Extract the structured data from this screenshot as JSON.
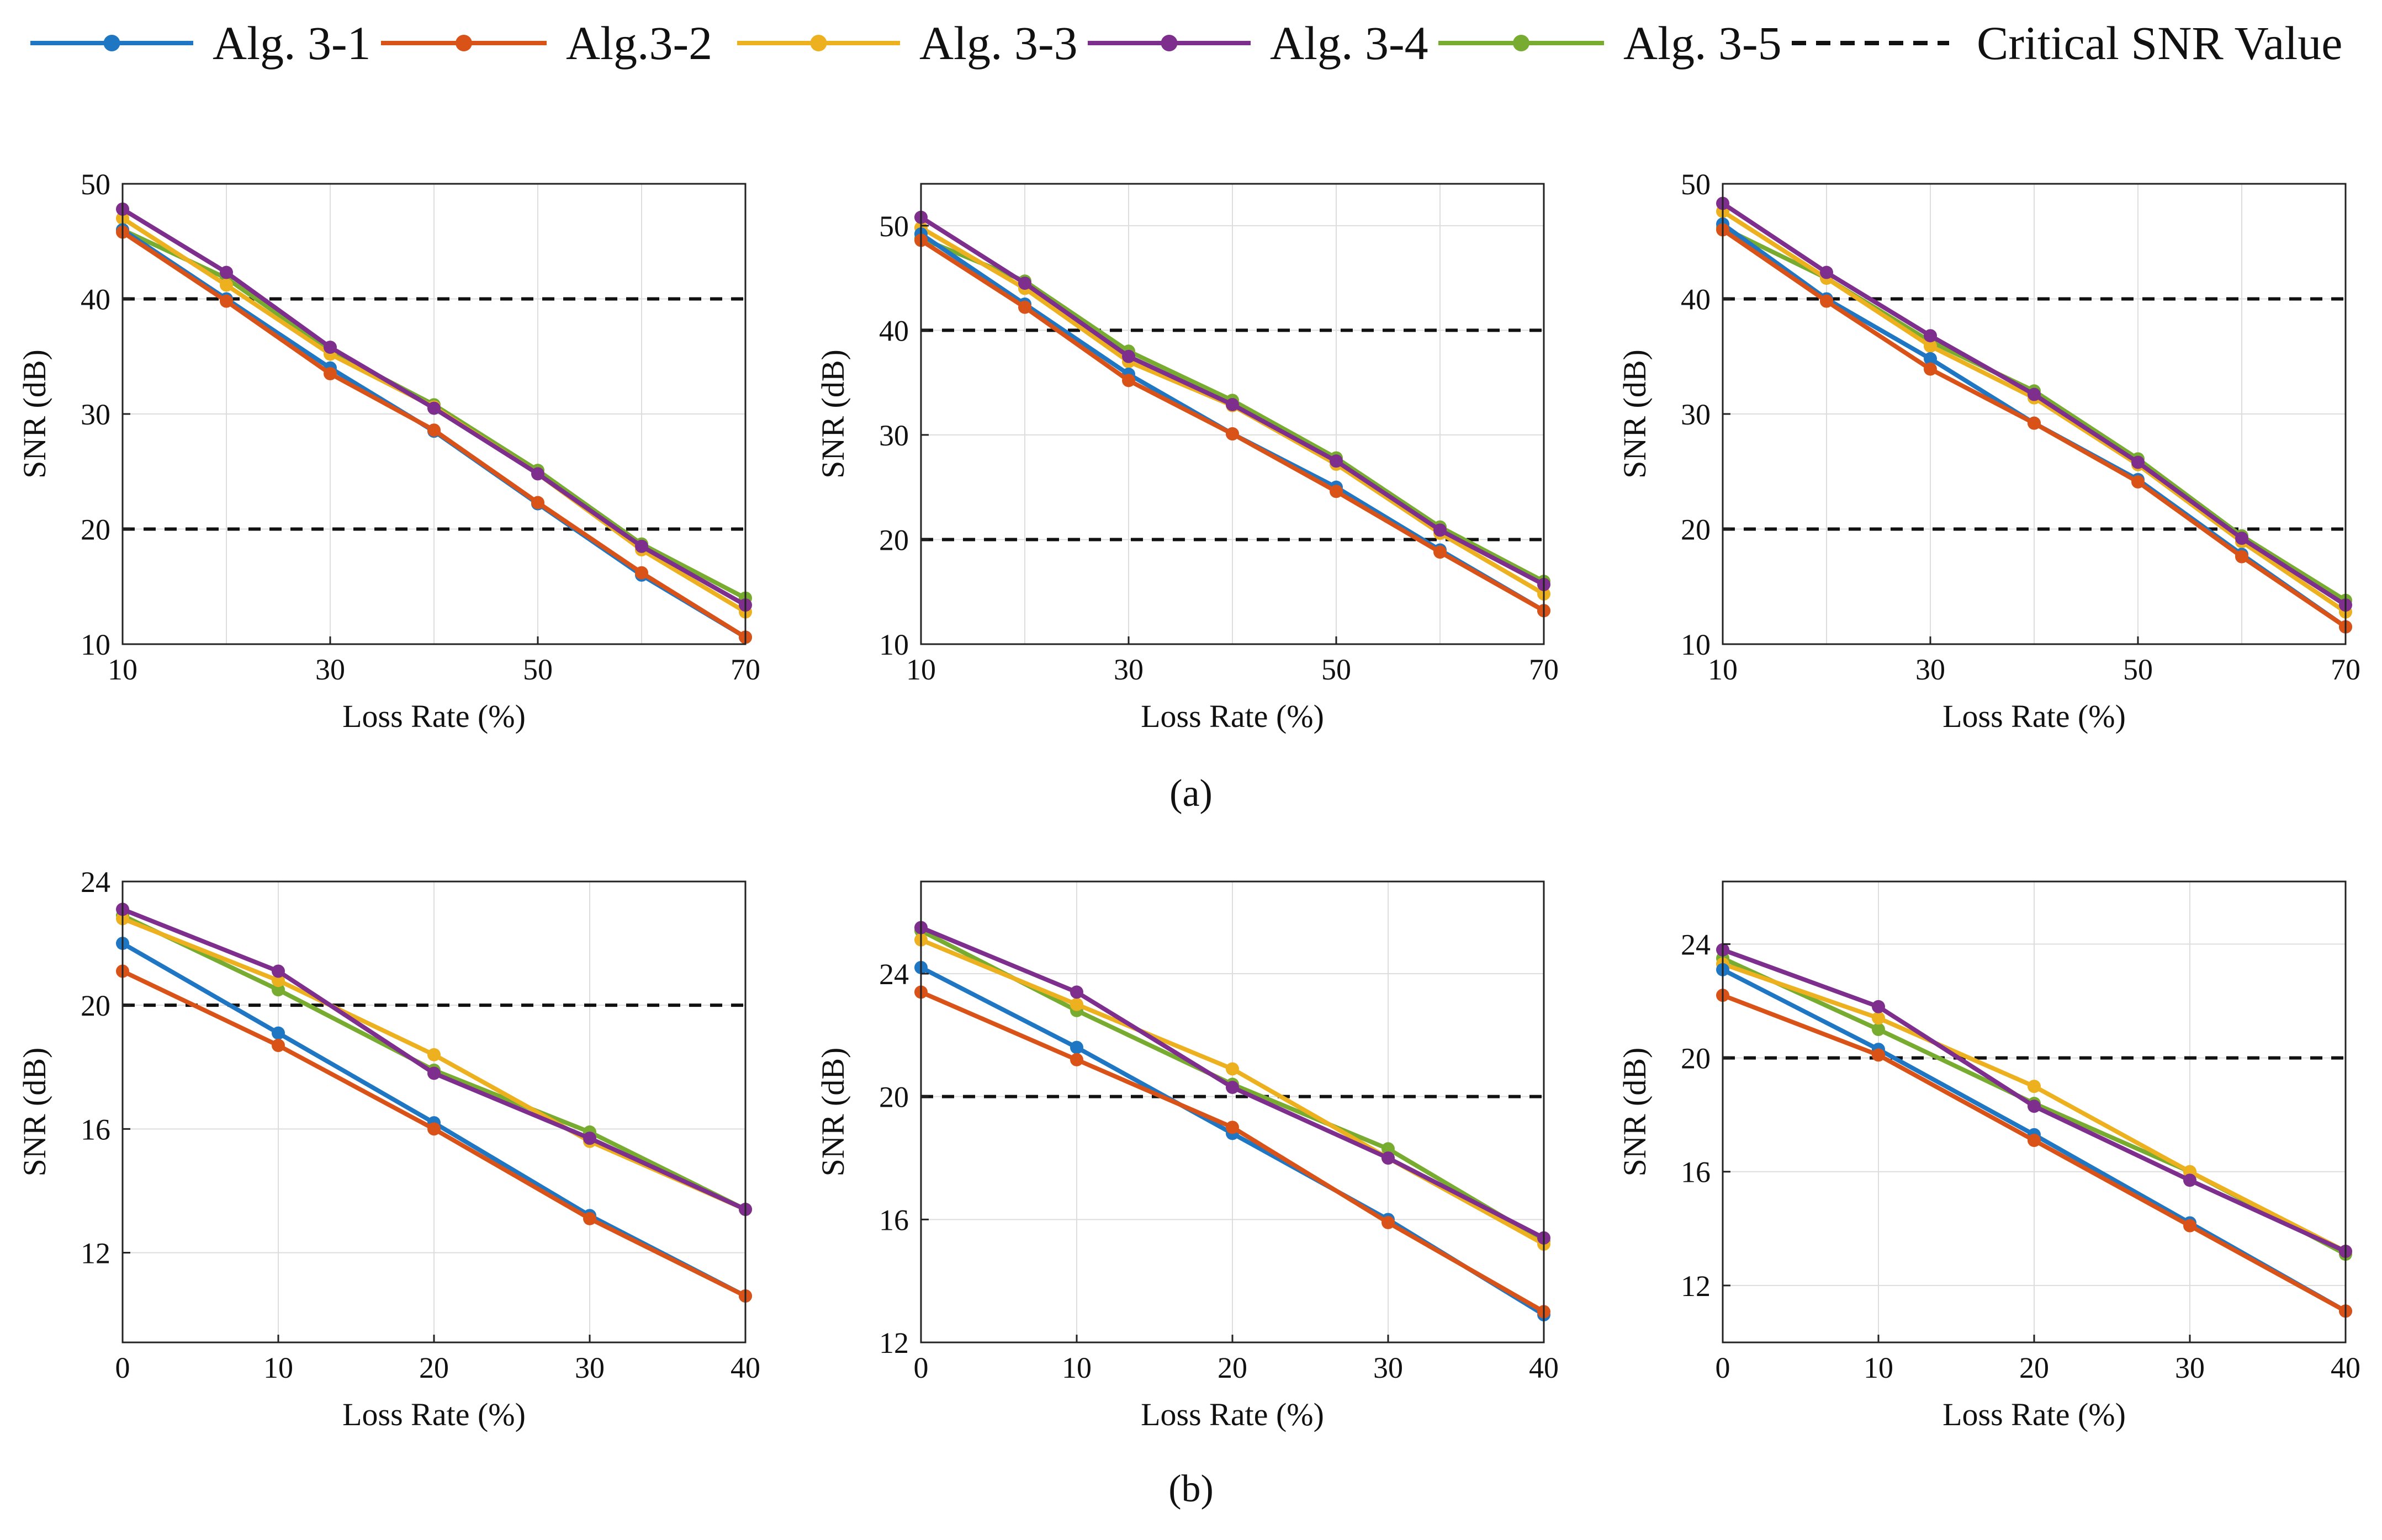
{
  "chart_data": {
    "type": "line",
    "legend": {
      "position": "top",
      "entries": [
        "Alg. 3-1",
        "Alg.3-2",
        "Alg. 3-3",
        "Alg. 3-4",
        "Alg. 3-5",
        "Critical SNR Value"
      ]
    },
    "series_colors": {
      "Alg. 3-1": "#1F77C4",
      "Alg.3-2": "#D95319",
      "Alg. 3-3": "#EDB120",
      "Alg. 3-4": "#7E2F8E",
      "Alg. 3-5": "#77AC30",
      "Critical SNR Value": "#111111"
    },
    "group_labels": [
      "(a)",
      "(b)"
    ],
    "subplots": [
      {
        "group": "(a)",
        "row": 0,
        "col": 0,
        "xlabel": "Loss Rate (%)",
        "ylabel": "SNR (dB)",
        "xlim": [
          10,
          70
        ],
        "ylim": [
          10,
          50
        ],
        "xticks": [
          10,
          30,
          50,
          70
        ],
        "yticks": [
          10,
          20,
          30,
          40,
          50
        ],
        "xgrid": [
          10,
          20,
          30,
          40,
          50,
          60,
          70
        ],
        "reference_lines": [
          40,
          20
        ],
        "x": [
          10,
          20,
          30,
          40,
          50,
          60,
          70
        ],
        "series": [
          {
            "name": "Alg. 3-1",
            "values": [
              46.0,
              40.0,
              34.0,
              28.5,
              22.2,
              16.0,
              10.6
            ]
          },
          {
            "name": "Alg.3-2",
            "values": [
              45.8,
              39.8,
              33.5,
              28.6,
              22.3,
              16.2,
              10.6
            ]
          },
          {
            "name": "Alg. 3-3",
            "values": [
              47.0,
              41.2,
              35.2,
              30.6,
              24.8,
              18.2,
              12.8
            ]
          },
          {
            "name": "Alg. 3-4",
            "values": [
              47.8,
              42.3,
              35.8,
              30.5,
              24.8,
              18.5,
              13.4
            ]
          },
          {
            "name": "Alg. 3-5",
            "values": [
              46.0,
              41.8,
              35.5,
              30.8,
              25.1,
              18.7,
              14.0
            ]
          }
        ]
      },
      {
        "group": "(a)",
        "row": 0,
        "col": 1,
        "xlabel": "Loss Rate (%)",
        "ylabel": "SNR (dB)",
        "xlim": [
          10,
          70
        ],
        "ylim": [
          10,
          54
        ],
        "xticks": [
          10,
          30,
          50,
          70
        ],
        "yticks": [
          10,
          20,
          30,
          40,
          50
        ],
        "xgrid": [
          10,
          20,
          30,
          40,
          50,
          60,
          70
        ],
        "reference_lines": [
          40,
          20
        ],
        "x": [
          10,
          20,
          30,
          40,
          50,
          60,
          70
        ],
        "series": [
          {
            "name": "Alg. 3-1",
            "values": [
              49.2,
              42.5,
              35.8,
              30.1,
              25.0,
              19.0,
              13.2
            ]
          },
          {
            "name": "Alg.3-2",
            "values": [
              48.6,
              42.2,
              35.2,
              30.1,
              24.6,
              18.8,
              13.2
            ]
          },
          {
            "name": "Alg. 3-3",
            "values": [
              49.8,
              44.0,
              37.0,
              32.8,
              27.2,
              20.6,
              14.8
            ]
          },
          {
            "name": "Alg. 3-4",
            "values": [
              50.8,
              44.5,
              37.5,
              32.9,
              27.5,
              20.9,
              15.7
            ]
          },
          {
            "name": "Alg. 3-5",
            "values": [
              48.8,
              44.7,
              38.0,
              33.3,
              27.8,
              21.2,
              16.0
            ]
          }
        ]
      },
      {
        "group": "(a)",
        "row": 0,
        "col": 2,
        "xlabel": "Loss Rate (%)",
        "ylabel": "SNR (dB)",
        "xlim": [
          10,
          70
        ],
        "ylim": [
          10,
          50
        ],
        "xticks": [
          10,
          30,
          50,
          70
        ],
        "yticks": [
          10,
          20,
          30,
          40,
          50
        ],
        "xgrid": [
          10,
          20,
          30,
          40,
          50,
          60,
          70
        ],
        "reference_lines": [
          40,
          20
        ],
        "x": [
          10,
          20,
          30,
          40,
          50,
          60,
          70
        ],
        "series": [
          {
            "name": "Alg. 3-1",
            "values": [
              46.5,
              40.0,
              34.8,
              29.2,
              24.3,
              17.8,
              11.5
            ]
          },
          {
            "name": "Alg.3-2",
            "values": [
              46.0,
              39.8,
              33.9,
              29.2,
              24.1,
              17.6,
              11.5
            ]
          },
          {
            "name": "Alg. 3-3",
            "values": [
              47.6,
              41.8,
              35.9,
              31.4,
              25.6,
              18.9,
              12.8
            ]
          },
          {
            "name": "Alg. 3-4",
            "values": [
              48.3,
              42.3,
              36.8,
              31.7,
              25.8,
              19.2,
              13.4
            ]
          },
          {
            "name": "Alg. 3-5",
            "values": [
              46.2,
              41.8,
              36.3,
              32.0,
              26.1,
              19.4,
              13.8
            ]
          }
        ]
      },
      {
        "group": "(b)",
        "row": 1,
        "col": 0,
        "xlabel": "Loss Rate (%)",
        "ylabel": "SNR (dB)",
        "xlim": [
          0,
          40
        ],
        "ylim": [
          9.1,
          24
        ],
        "xticks": [
          0,
          10,
          20,
          30,
          40
        ],
        "yticks": [
          12,
          16,
          20,
          24
        ],
        "xgrid": [
          0,
          10,
          20,
          30,
          40
        ],
        "reference_lines": [
          20
        ],
        "x": [
          0,
          10,
          20,
          30,
          40
        ],
        "series": [
          {
            "name": "Alg. 3-1",
            "values": [
              22.0,
              19.1,
              16.2,
              13.2,
              10.6
            ]
          },
          {
            "name": "Alg.3-2",
            "values": [
              21.1,
              18.7,
              16.0,
              13.1,
              10.6
            ]
          },
          {
            "name": "Alg. 3-3",
            "values": [
              22.8,
              20.8,
              18.4,
              15.6,
              13.4
            ]
          },
          {
            "name": "Alg. 3-4",
            "values": [
              23.1,
              21.1,
              17.8,
              15.7,
              13.4
            ]
          },
          {
            "name": "Alg. 3-5",
            "values": [
              22.9,
              20.5,
              17.9,
              15.9,
              13.4
            ]
          }
        ]
      },
      {
        "group": "(b)",
        "row": 1,
        "col": 1,
        "xlabel": "Loss Rate (%)",
        "ylabel": "SNR (dB)",
        "xlim": [
          0,
          40
        ],
        "ylim": [
          12,
          27
        ],
        "xticks": [
          0,
          10,
          20,
          30,
          40
        ],
        "yticks": [
          12,
          16,
          20,
          24
        ],
        "xgrid": [
          0,
          10,
          20,
          30,
          40
        ],
        "reference_lines": [
          20
        ],
        "x": [
          0,
          10,
          20,
          30,
          40
        ],
        "series": [
          {
            "name": "Alg. 3-1",
            "values": [
              24.2,
              21.6,
              18.8,
              16.0,
              12.9
            ]
          },
          {
            "name": "Alg.3-2",
            "values": [
              23.4,
              21.2,
              19.0,
              15.9,
              13.0
            ]
          },
          {
            "name": "Alg. 3-3",
            "values": [
              25.1,
              23.0,
              20.9,
              18.0,
              15.2
            ]
          },
          {
            "name": "Alg. 3-4",
            "values": [
              25.5,
              23.4,
              20.3,
              18.0,
              15.4
            ]
          },
          {
            "name": "Alg. 3-5",
            "values": [
              25.4,
              22.8,
              20.4,
              18.3,
              15.3
            ]
          }
        ]
      },
      {
        "group": "(b)",
        "row": 1,
        "col": 2,
        "xlabel": "Loss Rate (%)",
        "ylabel": "SNR (dB)",
        "xlim": [
          0,
          40
        ],
        "ylim": [
          10,
          26.2
        ],
        "xticks": [
          0,
          10,
          20,
          30,
          40
        ],
        "yticks": [
          12,
          16,
          20,
          24
        ],
        "xgrid": [
          0,
          10,
          20,
          30,
          40
        ],
        "reference_lines": [
          20
        ],
        "x": [
          0,
          10,
          20,
          30,
          40
        ],
        "series": [
          {
            "name": "Alg. 3-1",
            "values": [
              23.1,
              20.3,
              17.3,
              14.2,
              11.1
            ]
          },
          {
            "name": "Alg.3-2",
            "values": [
              22.2,
              20.1,
              17.1,
              14.1,
              11.1
            ]
          },
          {
            "name": "Alg. 3-3",
            "values": [
              23.3,
              21.4,
              19.0,
              16.0,
              13.2
            ]
          },
          {
            "name": "Alg. 3-4",
            "values": [
              23.8,
              21.8,
              18.3,
              15.7,
              13.2
            ]
          },
          {
            "name": "Alg. 3-5",
            "values": [
              23.5,
              21.0,
              18.4,
              16.0,
              13.1
            ]
          }
        ]
      }
    ]
  }
}
